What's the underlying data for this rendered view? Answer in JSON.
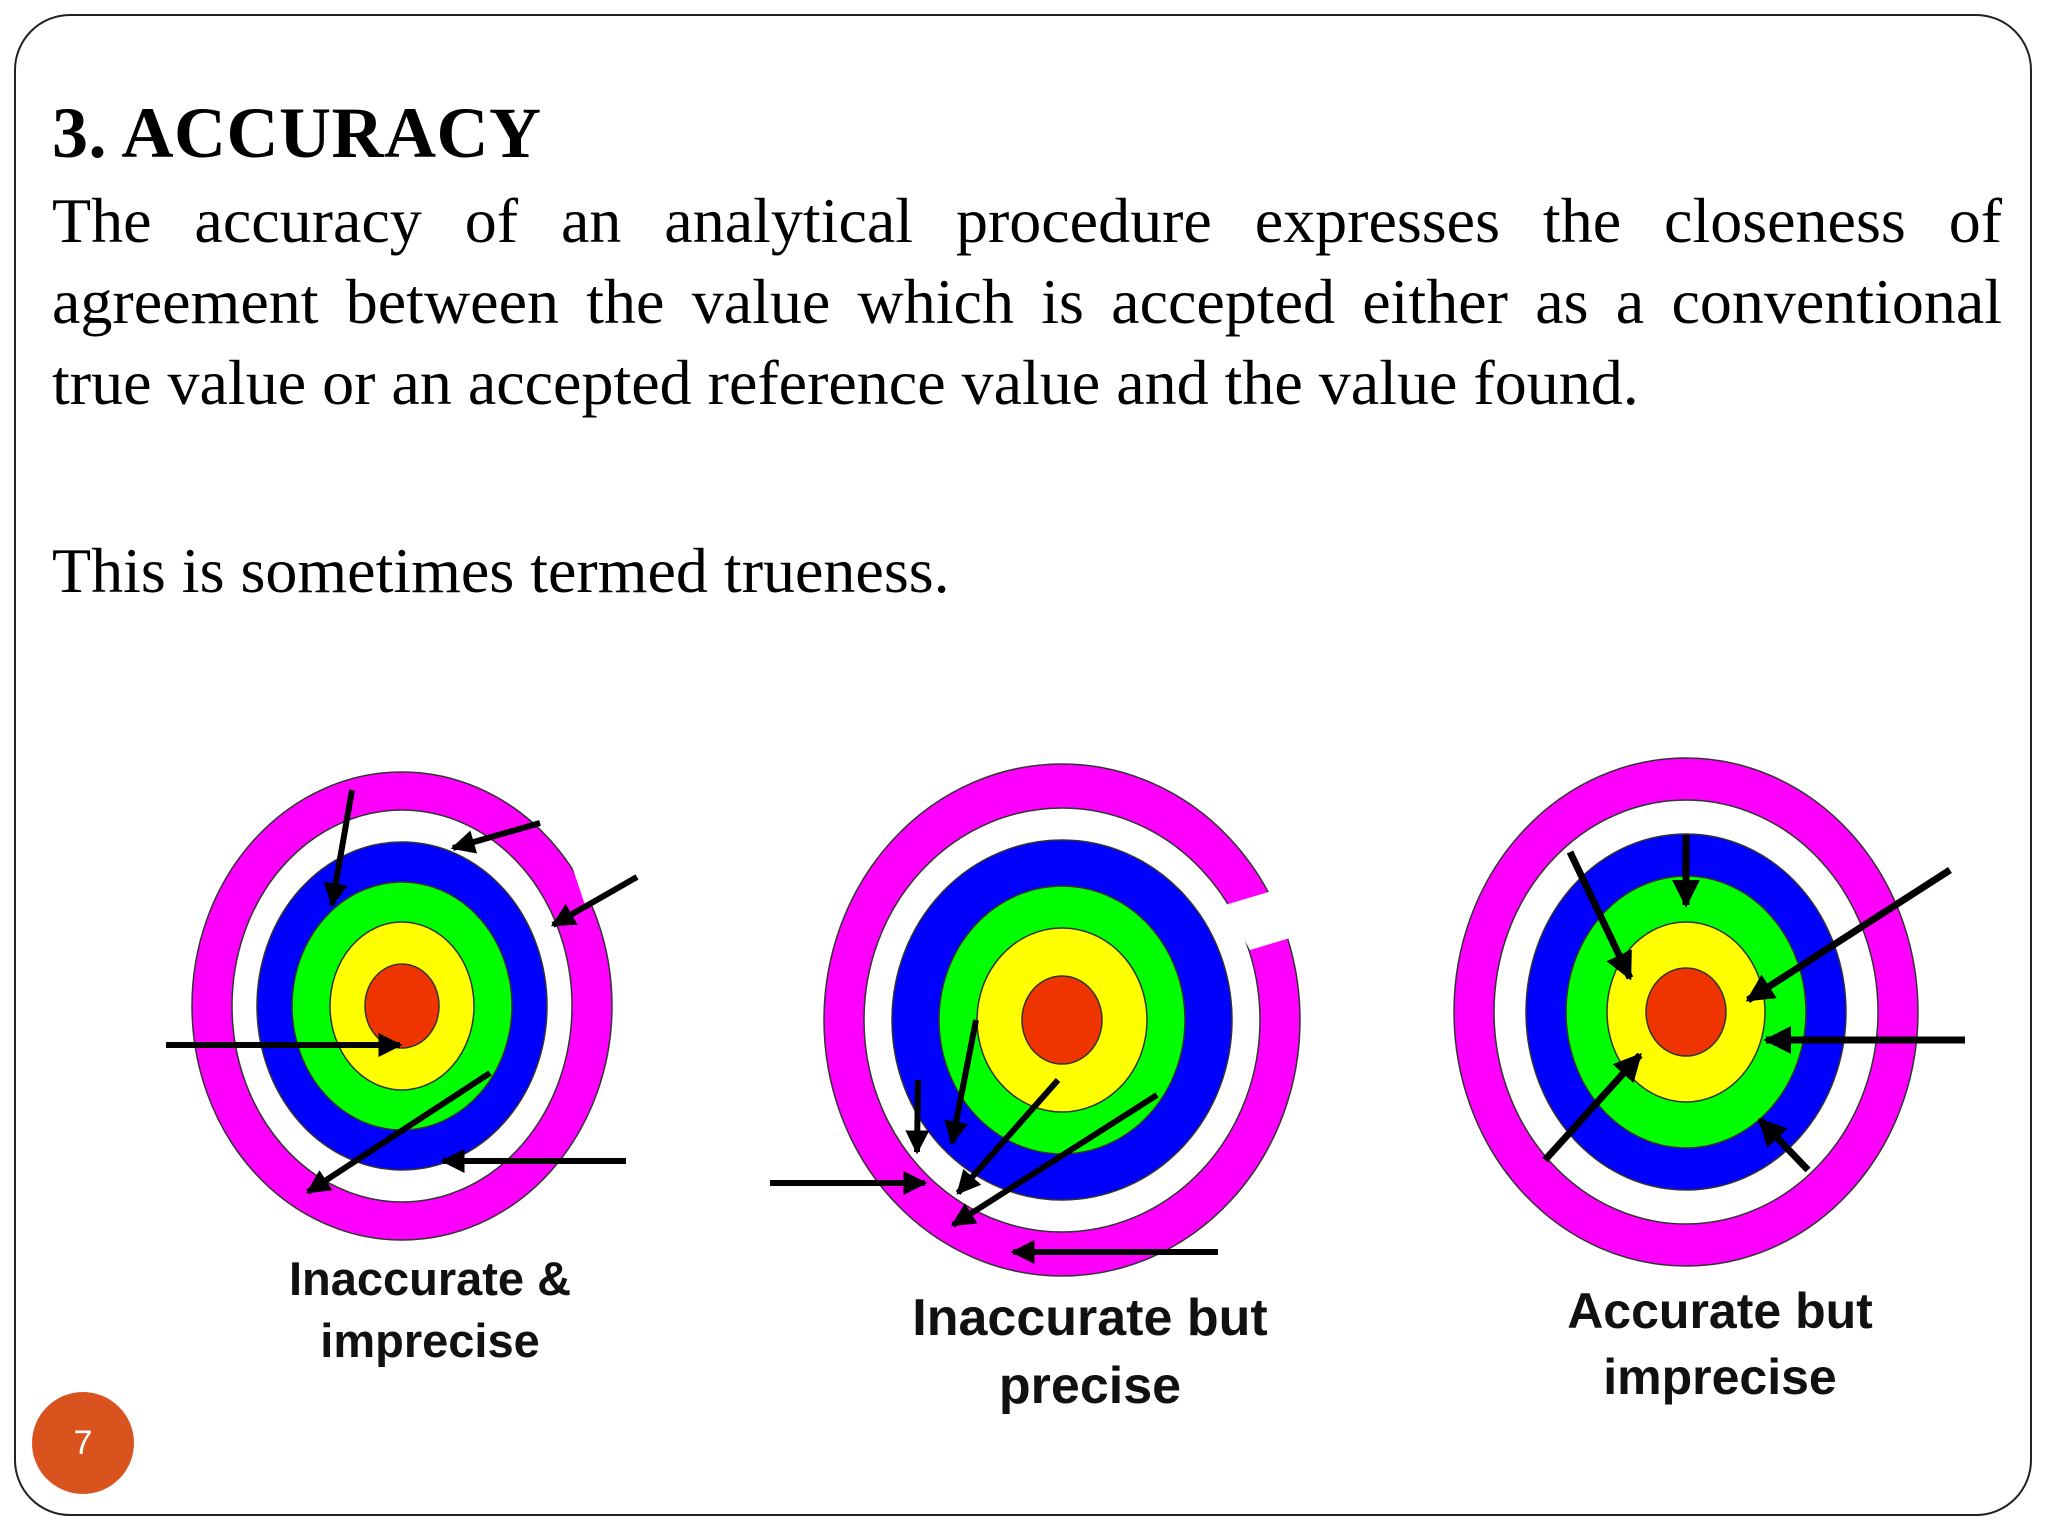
{
  "slide": {
    "heading": "3.  ACCURACY",
    "paragraph": "The accuracy of an analytical procedure expresses the closeness of agreement between  the value which is accepted either as a conventional true value or an accepted  reference value and the value found.",
    "note": "This is sometimes termed trueness.",
    "page_number": "7"
  },
  "diagram": {
    "ring_colors": [
      "#ff00ff",
      "#ffffff",
      "#0000ff",
      "#00ff00",
      "#ffff00",
      "#ff3300"
    ],
    "arrow_color": "#000000",
    "targets": [
      {
        "name": "inaccurate-imprecise",
        "caption": "Inaccurate & imprecise"
      },
      {
        "name": "inaccurate-precise",
        "caption": "Inaccurate but precise"
      },
      {
        "name": "accurate-imprecise",
        "caption": "Accurate but imprecise"
      }
    ]
  }
}
